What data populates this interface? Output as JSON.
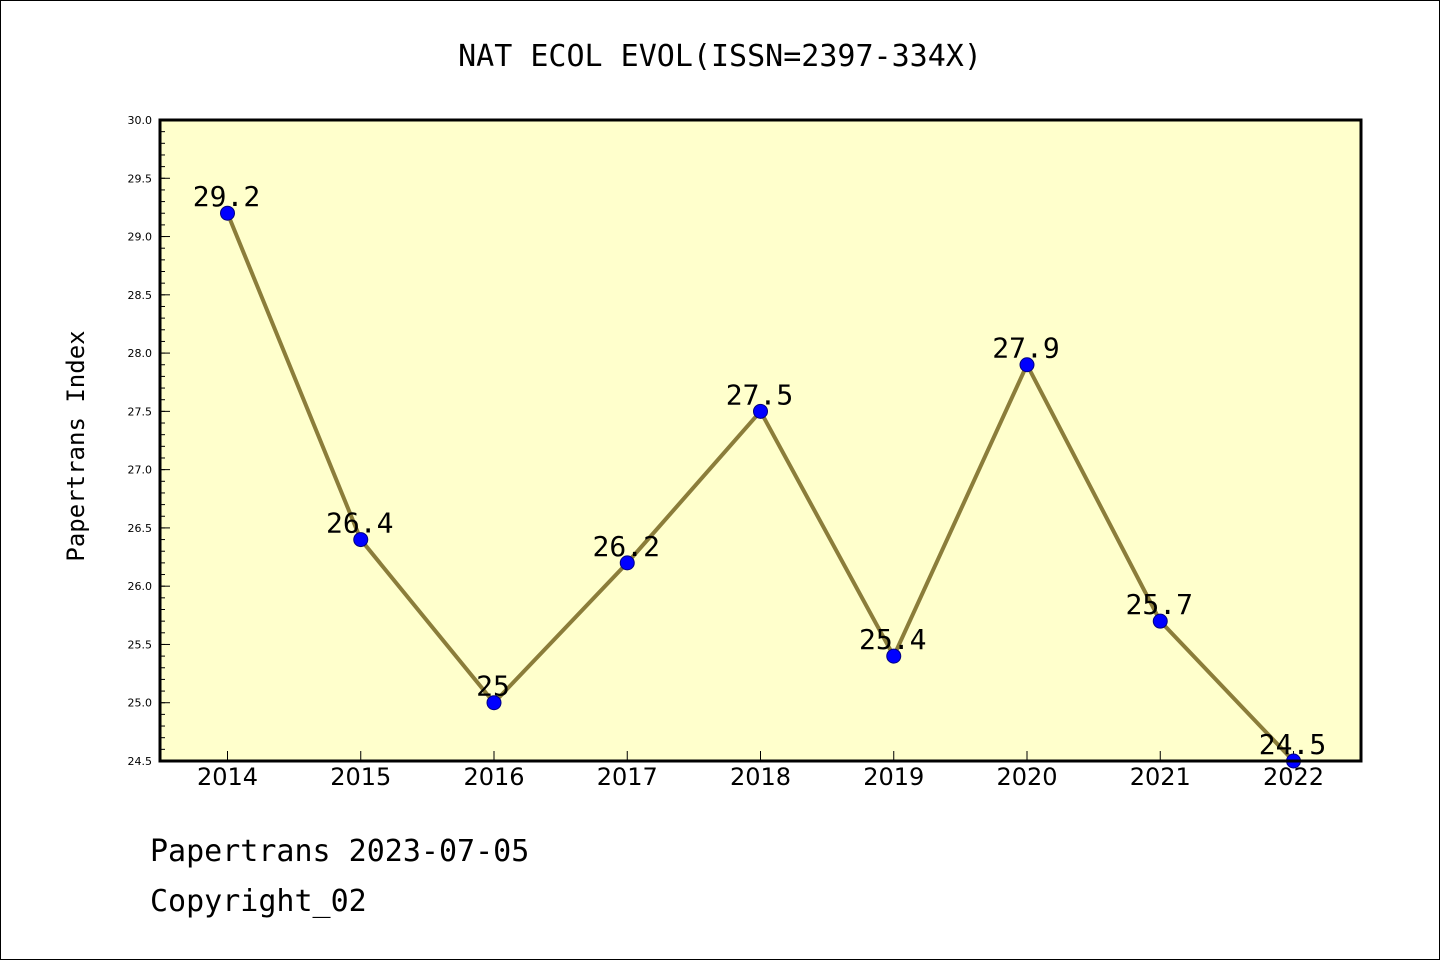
{
  "chart_data": {
    "type": "line",
    "title": "NAT ECOL EVOL(ISSN=2397-334X)",
    "xlabel": "",
    "ylabel": "Papertrans Index",
    "categories": [
      "2014",
      "2015",
      "2016",
      "2017",
      "2018",
      "2019",
      "2020",
      "2021",
      "2022"
    ],
    "values": [
      29.2,
      26.4,
      25,
      26.2,
      27.5,
      25.4,
      27.9,
      25.7,
      24.5
    ],
    "data_labels": [
      "29.2",
      "26.4",
      "25",
      "26.2",
      "27.5",
      "25.4",
      "27.9",
      "25.7",
      "24.5"
    ],
    "ylim": [
      24.5,
      30.0
    ],
    "yticks": [
      "24.5",
      "25.0",
      "25.5",
      "26.0",
      "26.5",
      "27.0",
      "27.5",
      "28.0",
      "28.5",
      "29.0",
      "29.5",
      "30.0"
    ],
    "grid": false,
    "legend": "none",
    "colors": {
      "plot_background": "#ffffcc",
      "line": "#8b7d3a",
      "marker": "#0000ff",
      "marker_edge": "#000080"
    }
  },
  "footer": {
    "line1": "Papertrans 2023-07-05",
    "line2": "Copyright_02"
  }
}
